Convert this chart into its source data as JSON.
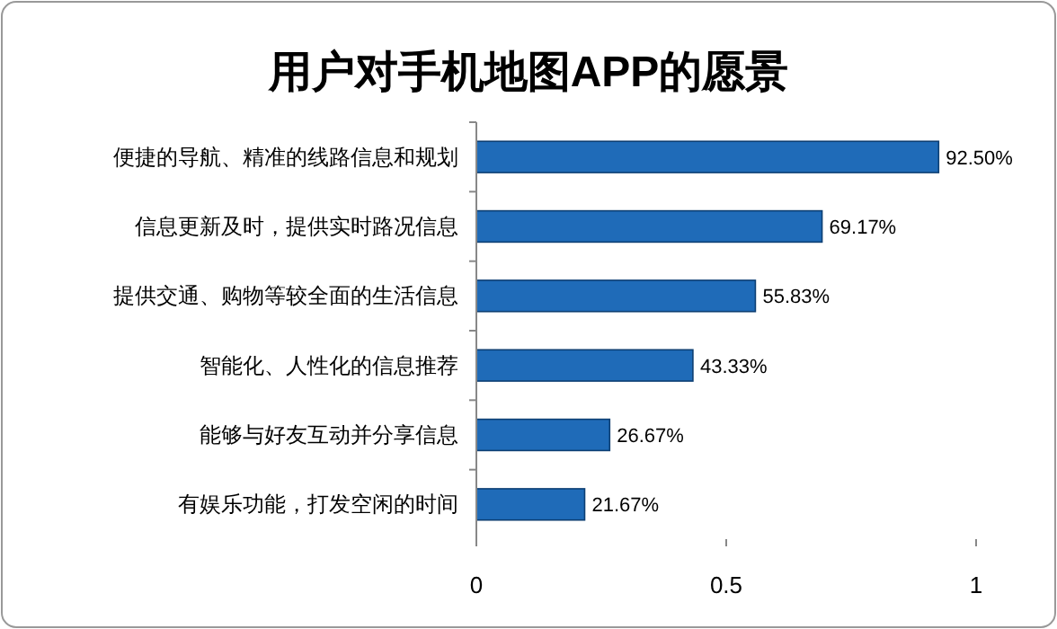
{
  "chart_data": {
    "type": "bar",
    "title": "用户对手机地图APP的愿景",
    "orientation": "horizontal",
    "categories": [
      "便捷的导航、精准的线路信息和规划",
      "信息更新及时，提供实时路况信息",
      "提供交通、购物等较全面的生活信息",
      "智能化、人性化的信息推荐",
      "能够与好友互动并分享信息",
      "有娱乐功能，打发空闲的时间"
    ],
    "values": [
      0.925,
      0.6917,
      0.5583,
      0.4333,
      0.2667,
      0.2167
    ],
    "value_labels": [
      "92.50%",
      "69.17%",
      "55.83%",
      "43.33%",
      "26.67%",
      "21.67%"
    ],
    "color": "#1f6bb8",
    "xlim": [
      0,
      1
    ],
    "xticks": [
      0,
      0.5,
      1
    ]
  }
}
